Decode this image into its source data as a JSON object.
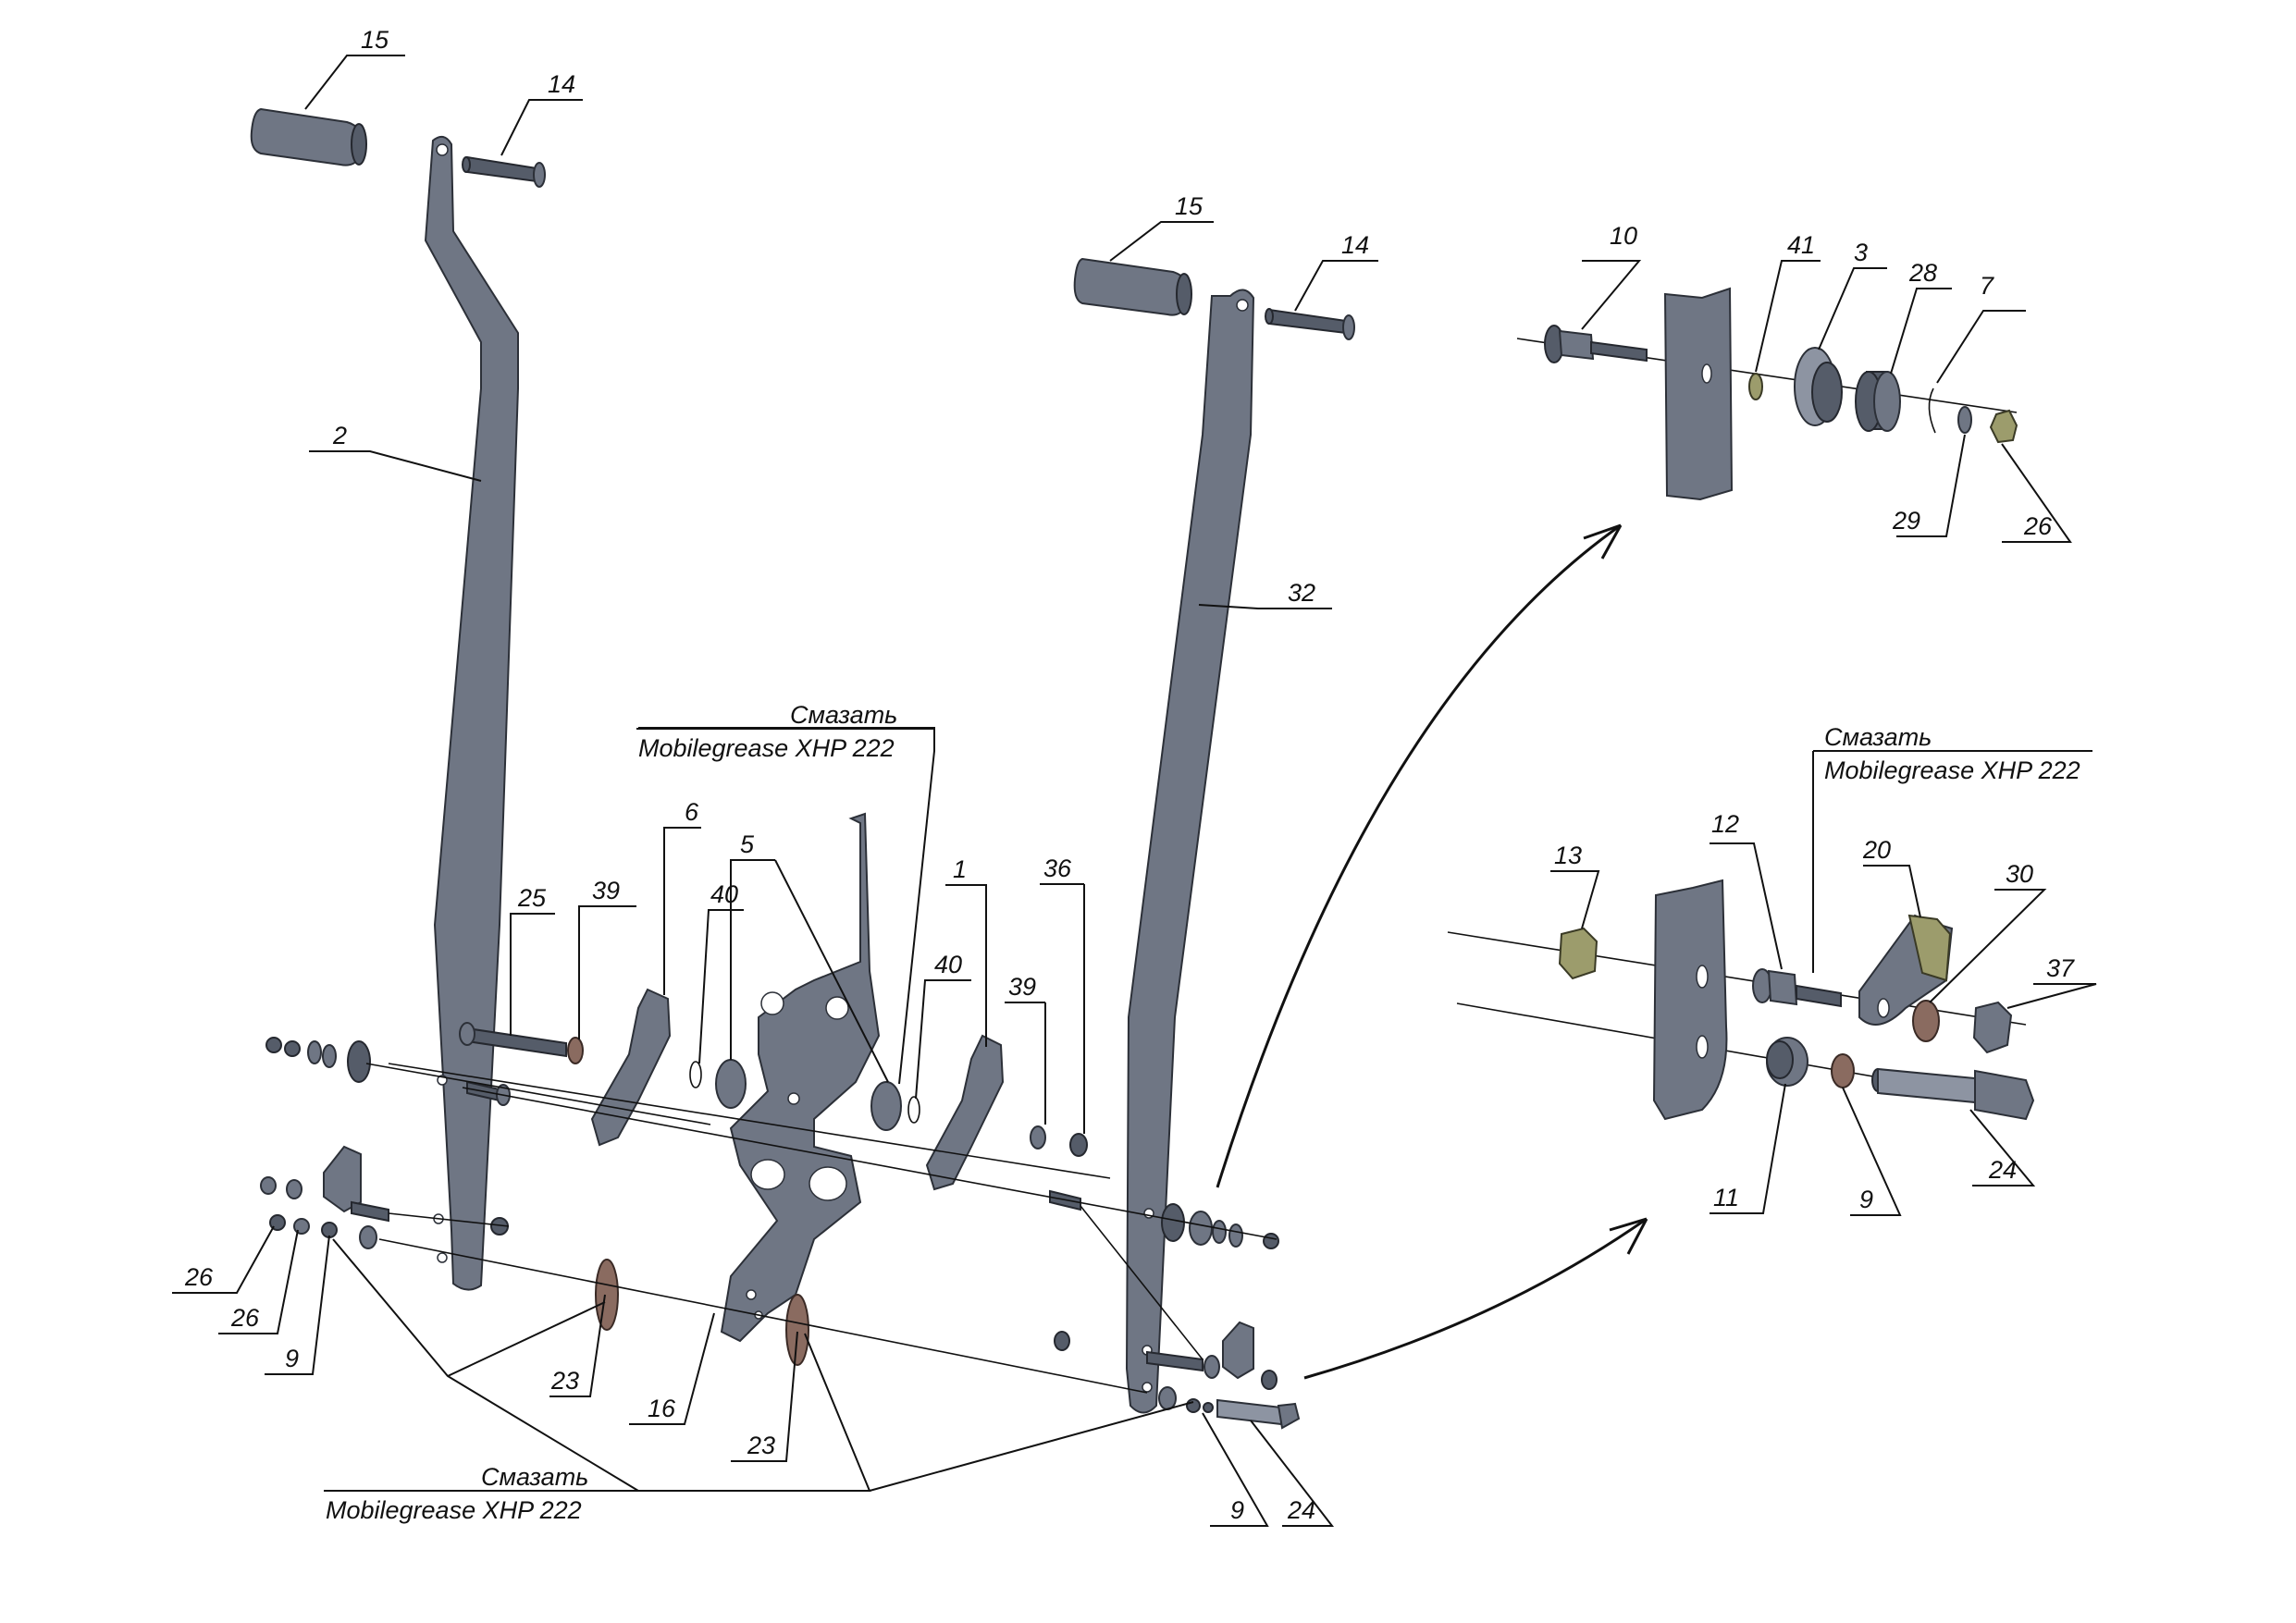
{
  "drawing": {
    "callouts": {
      "c15a": "15",
      "c14a": "14",
      "c2": "2",
      "c15b": "15",
      "c14b": "14",
      "c32": "32",
      "c25": "25",
      "c39a": "39",
      "c6": "6",
      "c40a": "40",
      "c5": "5",
      "c1": "1",
      "c40b": "40",
      "c39b": "39",
      "c36": "36",
      "c26a": "26",
      "c26b": "26",
      "c9a": "9",
      "c23a": "23",
      "c16": "16",
      "c23b": "23",
      "c9b": "9",
      "c24a": "24",
      "c10": "10",
      "c41": "41",
      "c3": "3",
      "c28": "28",
      "c7": "7",
      "c29": "29",
      "c26c": "26",
      "c13": "13",
      "c12": "12",
      "c20": "20",
      "c30": "30",
      "c37": "37",
      "c11": "11",
      "c9c": "9",
      "c24b": "24"
    },
    "notes": {
      "grease_top_line1": "Смазать",
      "grease_top_line2": "Mobilegrease XHP 222",
      "grease_right_line1": "Смазать",
      "grease_right_line2": "Mobilegrease XHP 222",
      "grease_bottom_line1": "Смазать",
      "grease_bottom_line2": "Mobilegrease XHP 222"
    },
    "colors": {
      "part": "#6f7684",
      "part_dark": "#555c69",
      "washer_bronze": "#8a6b60",
      "nut_brass": "#9c9c6c",
      "line": "#111111"
    }
  }
}
